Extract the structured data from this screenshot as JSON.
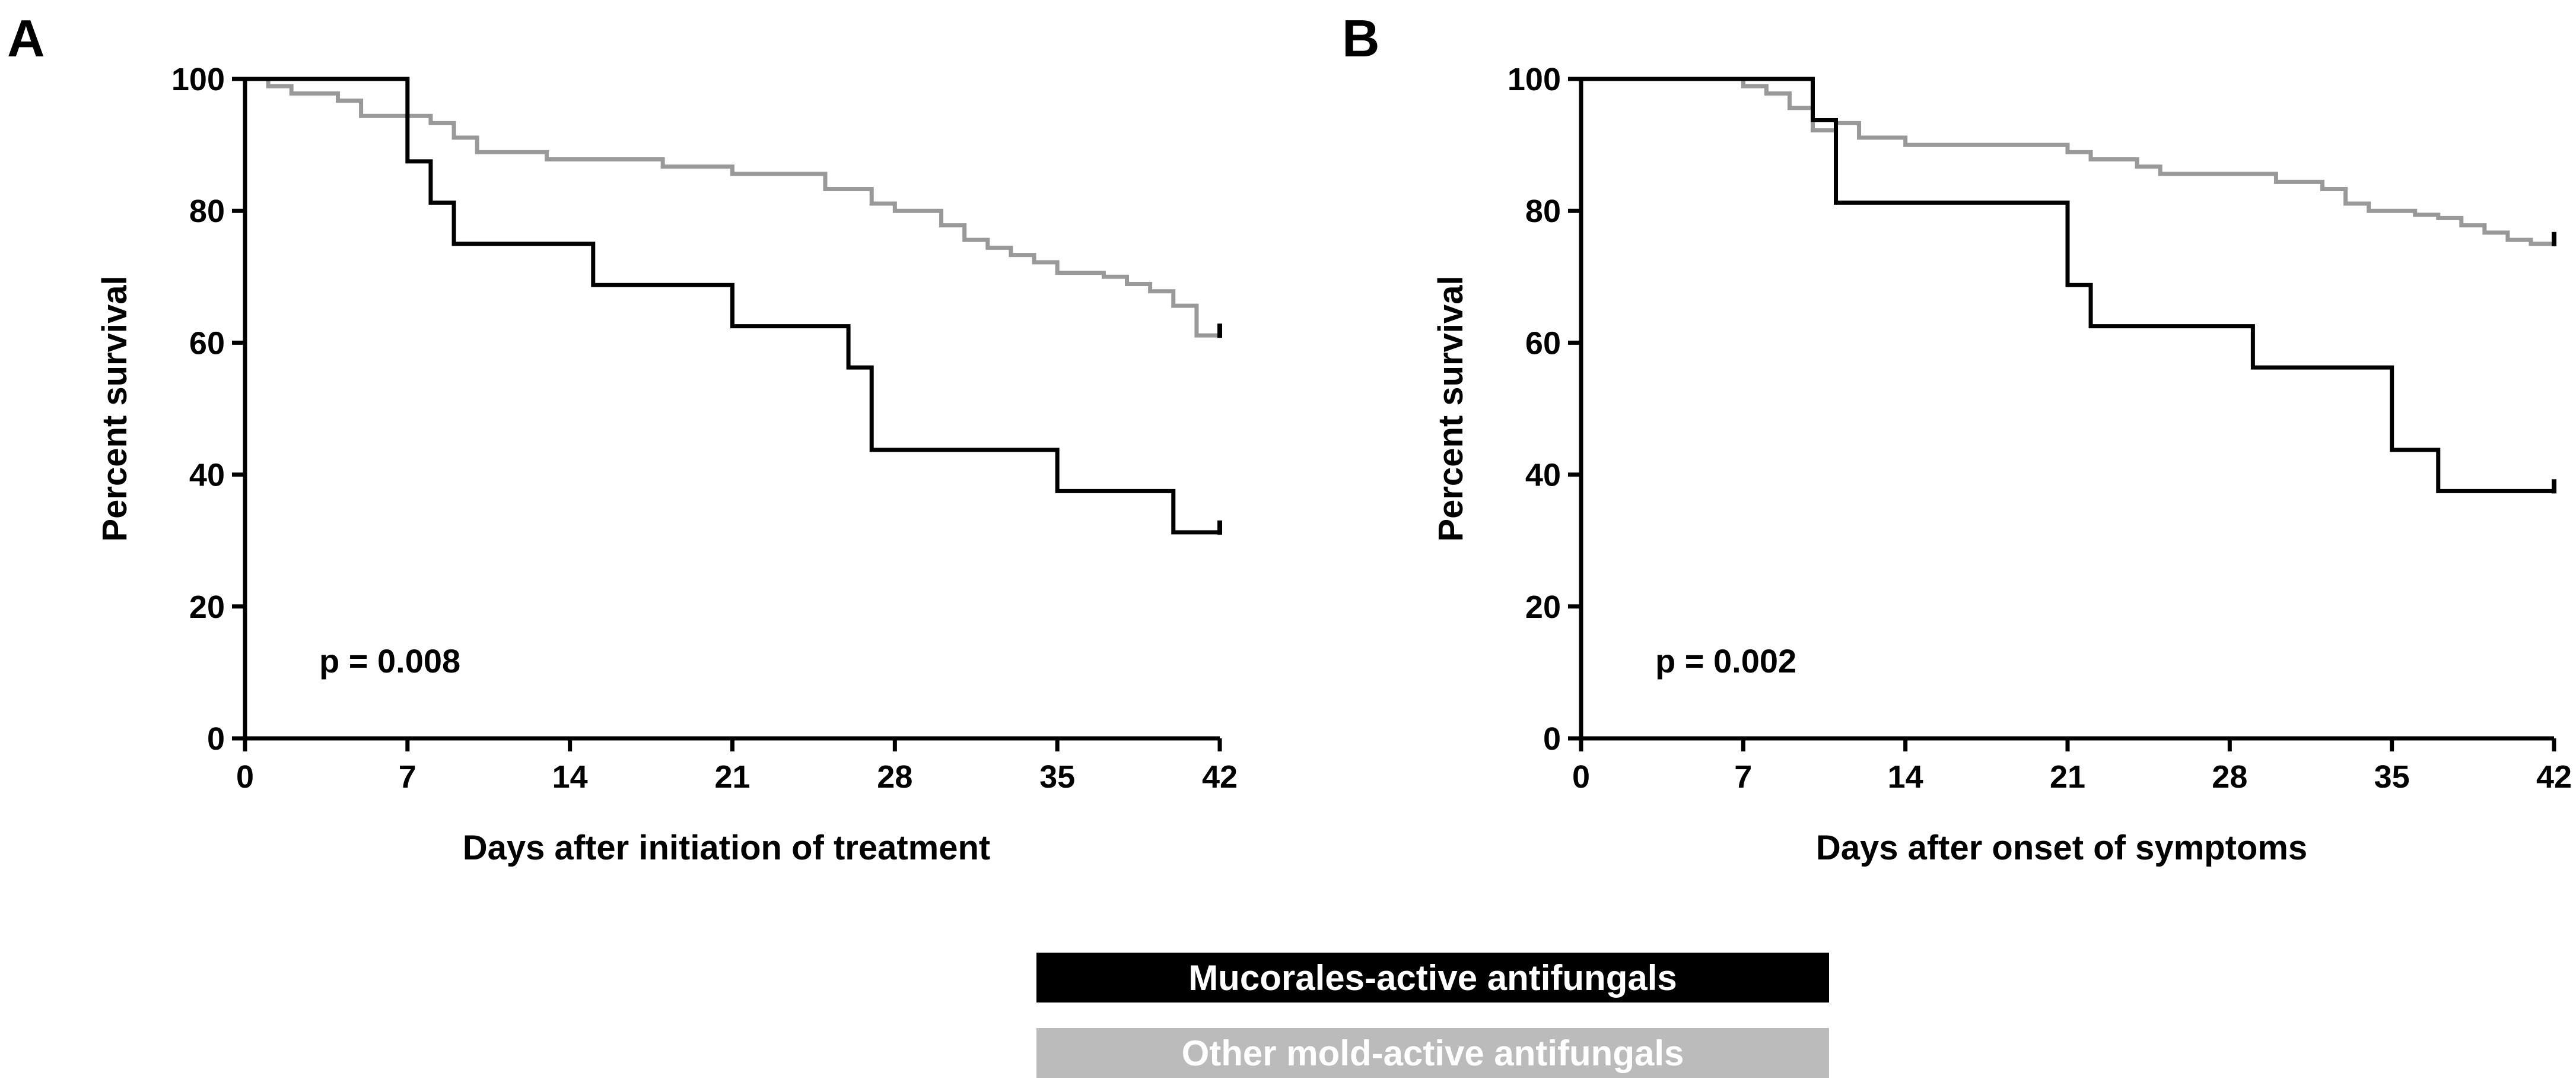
{
  "chart_data": [
    {
      "type": "line",
      "step": true,
      "panel": "A",
      "xlabel": "Days after initiation of treatment",
      "ylabel": "Percent survival",
      "xlim": [
        0,
        42
      ],
      "ylim": [
        0,
        100
      ],
      "xticks": [
        0,
        7,
        14,
        21,
        28,
        35,
        42
      ],
      "yticks": [
        0,
        20,
        40,
        60,
        80,
        100
      ],
      "annotation": "p = 0.008",
      "series": [
        {
          "name": "Other mold-active antifungals",
          "color": "#999999",
          "x": [
            0,
            1,
            2,
            4,
            5,
            7,
            8,
            9,
            10,
            13,
            18,
            21,
            25,
            27,
            28,
            30,
            31,
            32,
            33,
            34,
            35,
            37,
            38,
            39,
            40,
            41,
            42
          ],
          "y": [
            100,
            98.9,
            97.8,
            96.7,
            94.4,
            94.4,
            93.3,
            91.1,
            88.9,
            87.8,
            86.7,
            85.6,
            83.3,
            81.1,
            80,
            77.8,
            75.6,
            74.4,
            73.3,
            72.2,
            70.6,
            70,
            68.9,
            67.8,
            65.6,
            61.1,
            61.1
          ],
          "censored_at_end": true
        },
        {
          "name": "Mucorales-active antifungals",
          "color": "#000000",
          "x": [
            0,
            7,
            8,
            9,
            15,
            21,
            26,
            27,
            35,
            40,
            42
          ],
          "y": [
            100,
            87.5,
            81.25,
            75,
            68.75,
            62.5,
            56.25,
            43.75,
            37.5,
            31.25,
            31.25
          ],
          "censored_at_end": true
        }
      ]
    },
    {
      "type": "line",
      "step": true,
      "panel": "B",
      "xlabel": "Days after onset of symptoms",
      "ylabel": "Percent survival",
      "xlim": [
        0,
        42
      ],
      "ylim": [
        0,
        100
      ],
      "xticks": [
        0,
        7,
        14,
        21,
        28,
        35,
        42
      ],
      "yticks": [
        0,
        20,
        40,
        60,
        80,
        100
      ],
      "annotation": "p = 0.002",
      "series": [
        {
          "name": "Other mold-active antifungals",
          "color": "#999999",
          "x": [
            0,
            7,
            8,
            9,
            10,
            11,
            12,
            14,
            21,
            22,
            24,
            25,
            30,
            32,
            33,
            34,
            35,
            36,
            37,
            38,
            39,
            40,
            41,
            42
          ],
          "y": [
            100,
            98.9,
            97.8,
            95.6,
            92.2,
            93.3,
            91.1,
            90,
            88.9,
            87.8,
            86.7,
            85.6,
            84.4,
            83.3,
            81.1,
            80,
            80,
            79.4,
            78.9,
            77.8,
            76.7,
            75.6,
            75,
            75
          ],
          "censored_at_end": true
        },
        {
          "name": "Mucorales-active antifungals",
          "color": "#000000",
          "x": [
            0,
            10,
            11,
            21,
            22,
            29,
            35,
            37,
            42
          ],
          "y": [
            100,
            93.75,
            81.25,
            68.75,
            62.5,
            56.25,
            43.75,
            37.5,
            37.5
          ],
          "censored_at_end": true
        }
      ]
    }
  ],
  "legend": [
    {
      "label": "Mucorales-active antifungals",
      "color": "#000000"
    },
    {
      "label": "Other mold-active antifungals",
      "color": "#bbbbbb"
    }
  ]
}
